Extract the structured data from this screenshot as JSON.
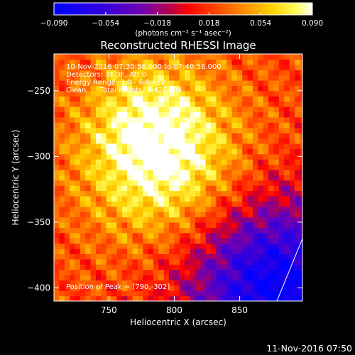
{
  "chart_data": {
    "type": "heatmap",
    "title": "Reconstructed RHESSI Image",
    "xlabel": "Heliocentric X (arcsec)",
    "ylabel": "Heliocentric Y (arcsec)",
    "xlim": [
      708,
      898
    ],
    "ylim": [
      -410,
      -222
    ],
    "xticks": [
      "750",
      "800",
      "850"
    ],
    "xtick_values": [
      750,
      800,
      850
    ],
    "yticks": [
      "−250",
      "−300",
      "−350",
      "−400"
    ],
    "ytick_values": [
      -250,
      -300,
      -350,
      -400
    ],
    "colorbar": {
      "min": -0.09,
      "max": 0.09,
      "ticks": [
        "−0.090",
        "−0.054",
        "−0.018",
        "0.018",
        "0.054",
        "0.090"
      ],
      "tick_values": [
        -0.09,
        -0.054,
        -0.018,
        0.018,
        0.054,
        0.09
      ],
      "unit_label": "(photons cm⁻² s⁻¹ asec⁻²)",
      "colormap": [
        "#0000ff",
        "#4000d0",
        "#8000b0",
        "#ff0000",
        "#ff8000",
        "#ffff00",
        "#ffffff"
      ]
    },
    "annotations": [
      "10-Nov-2016 07:30:56.000 to 07:40:56.000",
      "Detectors: 3F 9F, Att 0",
      "Energy Range: 3.0 - 6.0 keV",
      "Clean      Total counts: 4.42E+04"
    ],
    "peak_label": "Position of Peak = [790,-302]",
    "peak": {
      "x": 790,
      "y": -302,
      "value": 0.09
    },
    "background_level": 0.02,
    "grid": false
  },
  "footer": {
    "timestamp": "11-Nov-2016 07:50"
  }
}
